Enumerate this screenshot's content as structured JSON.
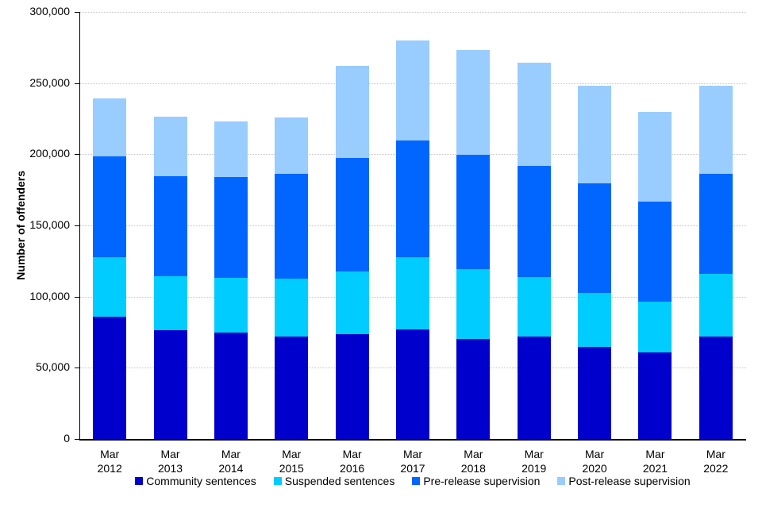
{
  "chart_data": {
    "type": "bar",
    "stacked": true,
    "title": "",
    "xlabel": "",
    "ylabel": "Number of offenders",
    "ylim": [
      0,
      300000
    ],
    "ytick_step": 50000,
    "yticks": [
      "0",
      "50,000",
      "100,000",
      "150,000",
      "200,000",
      "250,000",
      "300,000"
    ],
    "grid": "horizontal-dotted",
    "legend_position": "bottom",
    "categories": [
      "Mar 2012",
      "Mar 2013",
      "Mar 2014",
      "Mar 2015",
      "Mar 2016",
      "Mar 2017",
      "Mar 2018",
      "Mar 2019",
      "Mar 2020",
      "Mar 2021",
      "Mar 2022"
    ],
    "series": [
      {
        "name": "Community sentences",
        "color": "#0000CC",
        "values": [
          86000,
          76500,
          74500,
          72000,
          73500,
          77000,
          70000,
          72000,
          64500,
          61000,
          72000
        ]
      },
      {
        "name": "Suspended sentences",
        "color": "#00CCFF",
        "values": [
          41500,
          38000,
          38500,
          40500,
          44000,
          50500,
          49500,
          41500,
          38000,
          35500,
          44000
        ]
      },
      {
        "name": "Pre-release supervision",
        "color": "#0066FF",
        "values": [
          71000,
          70000,
          71000,
          74000,
          80000,
          82000,
          80000,
          78500,
          77000,
          70000,
          70500
        ]
      },
      {
        "name": "Post-release supervision",
        "color": "#99CCFF",
        "values": [
          40500,
          42000,
          39000,
          39500,
          64500,
          70500,
          73500,
          72500,
          68500,
          63500,
          61500
        ]
      }
    ],
    "totals": [
      239000,
      226500,
      223000,
      226000,
      262000,
      280000,
      273000,
      264500,
      248000,
      230000,
      248000
    ]
  }
}
